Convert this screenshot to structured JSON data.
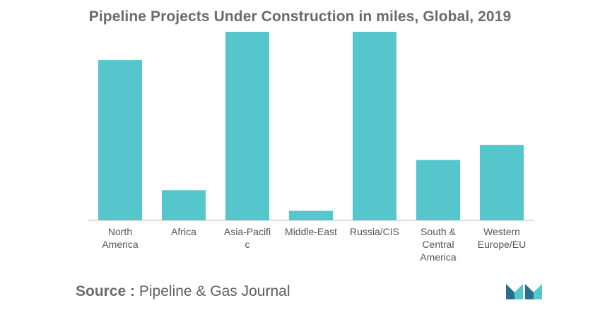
{
  "chart_data": {
    "type": "bar",
    "title": "Pipeline Projects Under Construction in miles, Global, 2019",
    "categories": [
      [
        "North",
        "America"
      ],
      [
        "Africa"
      ],
      [
        "Asia-Pacifi",
        "c"
      ],
      [
        "Middle-East"
      ],
      [
        "Russia/CIS"
      ],
      [
        "South &",
        "Central",
        "America"
      ],
      [
        "Western",
        "Europe/EU"
      ]
    ],
    "values": [
      85,
      16,
      100,
      5,
      100,
      32,
      40
    ],
    "ylim": [
      0,
      100
    ],
    "grid": false,
    "bar_color": "#55c6cc",
    "axis_color": "#bfbfbf"
  },
  "footer": {
    "source_label": "Source :",
    "source_text": "Pipeline & Gas Journal"
  },
  "logo": {
    "icon": "mordor-intelligence-logo-icon",
    "colors": [
      "#2b6f8e",
      "#55c6cc"
    ]
  }
}
